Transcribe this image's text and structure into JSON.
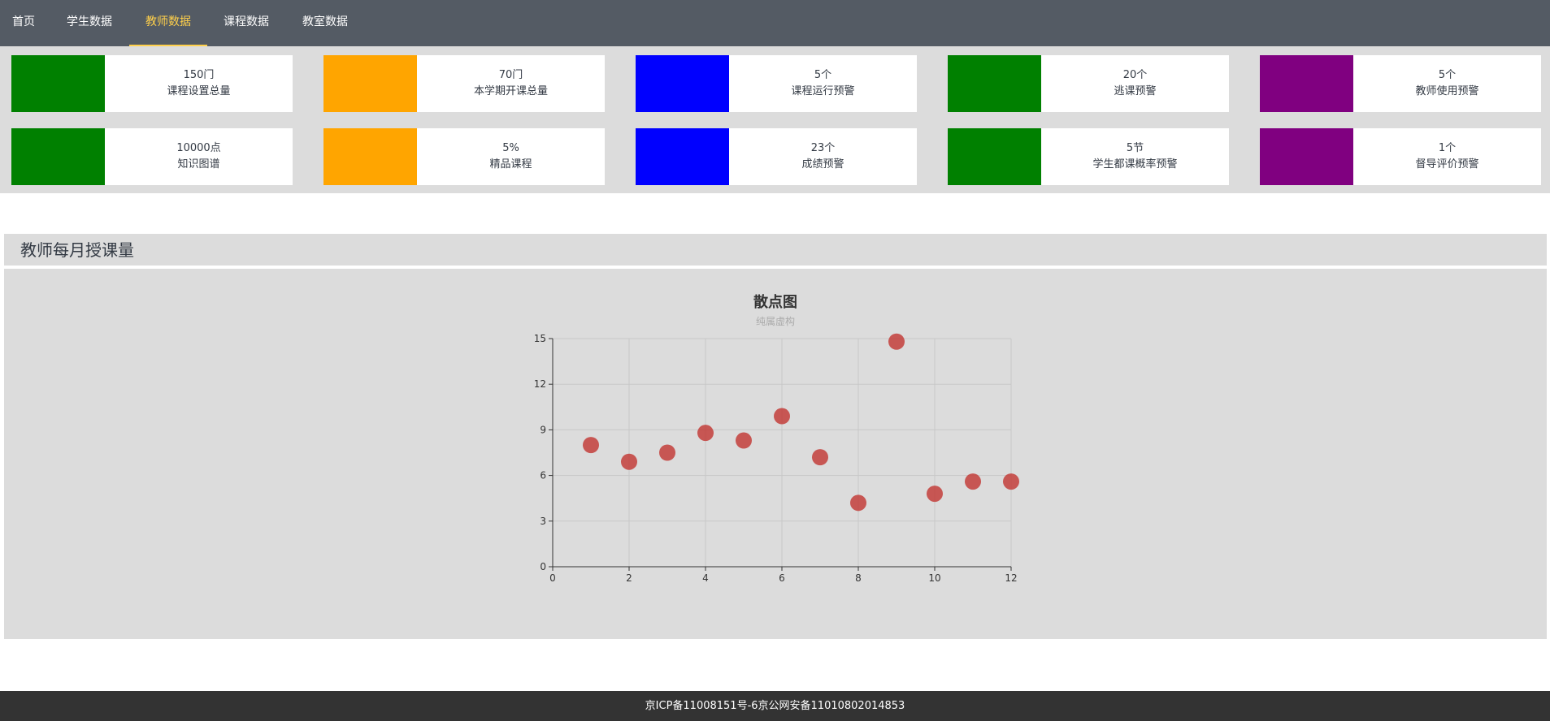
{
  "nav": {
    "items": [
      {
        "label": "首页"
      },
      {
        "label": "学生数据"
      },
      {
        "label": "教师数据"
      },
      {
        "label": "课程数据"
      },
      {
        "label": "教室数据"
      }
    ],
    "active_index": 2,
    "active_color": "#ffd04b"
  },
  "stats": {
    "row1": [
      {
        "value": "150门",
        "label": "课程设置总量",
        "color": "#008000"
      },
      {
        "value": "70门",
        "label": "本学期开课总量",
        "color": "#ffa500"
      },
      {
        "value": "5个",
        "label": "课程运行预警",
        "color": "#0000ff"
      },
      {
        "value": "20个",
        "label": "逃课预警",
        "color": "#008000"
      },
      {
        "value": "5个",
        "label": "教师使用预警",
        "color": "#800080"
      }
    ],
    "row2": [
      {
        "value": "10000点",
        "label": "知识图谱",
        "color": "#008000"
      },
      {
        "value": "5%",
        "label": "精品课程",
        "color": "#ffa500"
      },
      {
        "value": "23个",
        "label": "成绩预警",
        "color": "#0000ff"
      },
      {
        "value": "5节",
        "label": "学生都课概率预警",
        "color": "#008000"
      },
      {
        "value": "1个",
        "label": "督导评价预警",
        "color": "#800080"
      }
    ]
  },
  "section": {
    "title": "教师每月授课量"
  },
  "chart_data": {
    "type": "scatter",
    "title": "散点图",
    "subtitle": "纯属虚构",
    "xlabel": "",
    "ylabel": "",
    "xlim": [
      0,
      12
    ],
    "ylim": [
      0,
      15
    ],
    "xticks": [
      0,
      2,
      4,
      6,
      8,
      10,
      12
    ],
    "yticks": [
      0,
      3,
      6,
      9,
      12,
      15
    ],
    "grid": true,
    "point_color": "#c23531",
    "points": [
      {
        "x": 1,
        "y": 8.0
      },
      {
        "x": 2,
        "y": 6.9
      },
      {
        "x": 3,
        "y": 7.5
      },
      {
        "x": 4,
        "y": 8.8
      },
      {
        "x": 5,
        "y": 8.3
      },
      {
        "x": 6,
        "y": 9.9
      },
      {
        "x": 7,
        "y": 7.2
      },
      {
        "x": 8,
        "y": 4.2
      },
      {
        "x": 9,
        "y": 14.8
      },
      {
        "x": 10,
        "y": 4.8
      },
      {
        "x": 11,
        "y": 5.6
      },
      {
        "x": 12,
        "y": 5.6
      }
    ]
  },
  "footer": {
    "text": "京ICP备11008151号-6京公网安备11010802014853"
  }
}
